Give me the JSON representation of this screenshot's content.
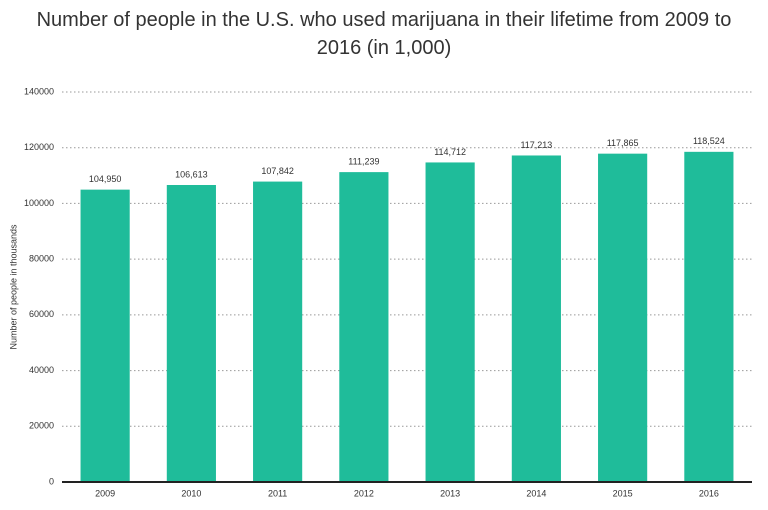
{
  "chart_data": {
    "type": "bar",
    "title": "Number of people in the U.S. who used marijuana in their lifetime from 2009 to 2016 (in 1,000)",
    "y_label": "Number of people in thousands",
    "categories": [
      "2009",
      "2010",
      "2011",
      "2012",
      "2013",
      "2014",
      "2015",
      "2016"
    ],
    "values": [
      104950,
      106613,
      107842,
      111239,
      114712,
      117213,
      117865,
      118524
    ],
    "value_labels": [
      "104,950",
      "106,613",
      "107,842",
      "111,239",
      "114,712",
      "117,213",
      "117,865",
      "118,524"
    ],
    "color": "#1fbc9a",
    "ylim": [
      0,
      140000
    ],
    "yticks": [
      0,
      20000,
      40000,
      60000,
      80000,
      100000,
      120000,
      140000
    ],
    "grid": true
  }
}
